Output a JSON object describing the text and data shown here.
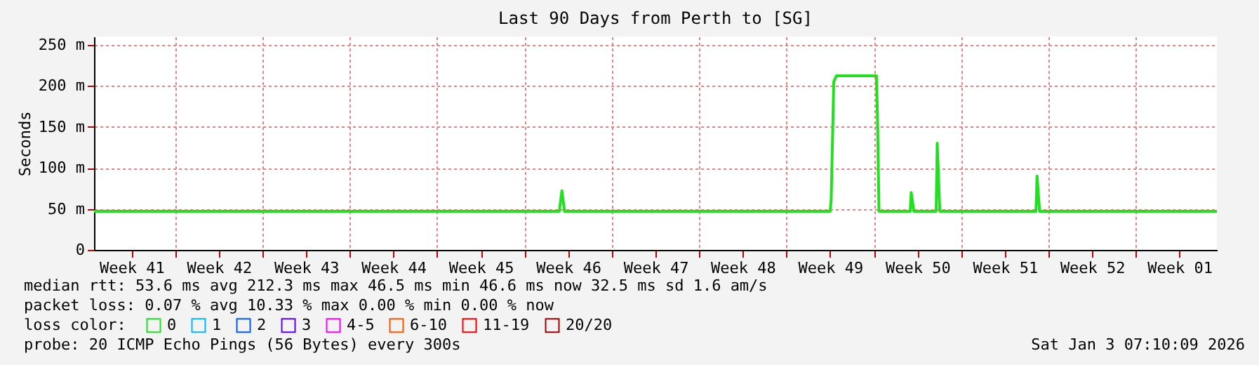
{
  "chart_data": {
    "type": "line",
    "title": "Last 90 Days from Perth to [SG]",
    "ylabel": "Seconds",
    "legend_title": "loss color:",
    "legend": "bottom",
    "grid": true,
    "marker": "none",
    "line_style": "solid",
    "x": [
      "2025-10-06T12:00",
      "2025-11-12T19:00",
      "2025-11-13T00:00",
      "2025-11-13T05:00",
      "2025-12-04T12:00",
      "2025-12-04T14:00",
      "2025-12-04T19:00",
      "2025-12-05T00:00",
      "2025-12-08T05:00",
      "2025-12-08T07:00",
      "2025-12-08T10:00",
      "2025-12-10T22:00",
      "2025-12-11T00:00",
      "2025-12-11T05:00",
      "2025-12-13T00:00",
      "2025-12-13T02:00",
      "2025-12-13T07:00",
      "2025-12-21T00:00",
      "2025-12-21T02:00",
      "2025-12-21T07:00",
      "2026-01-04T12:00"
    ],
    "xlim": [
      "2025-10-06T12:00",
      "2026-01-04T12:00"
    ],
    "xticks": [
      {
        "value": "2025-10-09T12:00",
        "label": "Week 41"
      },
      {
        "value": "2025-10-16T12:00",
        "label": "Week 42"
      },
      {
        "value": "2025-10-23T12:00",
        "label": "Week 43"
      },
      {
        "value": "2025-10-30T12:00",
        "label": "Week 44"
      },
      {
        "value": "2025-11-06T12:00",
        "label": "Week 45"
      },
      {
        "value": "2025-11-13T12:00",
        "label": "Week 46"
      },
      {
        "value": "2025-11-20T12:00",
        "label": "Week 47"
      },
      {
        "value": "2025-11-27T12:00",
        "label": "Week 48"
      },
      {
        "value": "2025-12-04T12:00",
        "label": "Week 49"
      },
      {
        "value": "2025-12-11T12:00",
        "label": "Week 50"
      },
      {
        "value": "2025-12-18T12:00",
        "label": "Week 51"
      },
      {
        "value": "2025-12-25T12:00",
        "label": "Week 52"
      },
      {
        "value": "2026-01-01T12:00",
        "label": "Week 01"
      },
      {
        "value": "2025-10-13",
        "label": null
      },
      {
        "value": "2025-10-20",
        "label": null
      },
      {
        "value": "2025-10-27",
        "label": null
      },
      {
        "value": "2025-11-03",
        "label": null
      },
      {
        "value": "2025-11-10",
        "label": null
      },
      {
        "value": "2025-11-17",
        "label": null
      },
      {
        "value": "2025-11-24",
        "label": null
      },
      {
        "value": "2025-12-01",
        "label": null
      },
      {
        "value": "2025-12-08",
        "label": null
      },
      {
        "value": "2025-12-15",
        "label": null
      },
      {
        "value": "2025-12-22",
        "label": null
      },
      {
        "value": "2025-12-29",
        "label": null
      }
    ],
    "ylim": [
      0,
      260
    ],
    "yticks": [
      0,
      {
        "value": 50,
        "label": "50 m"
      },
      {
        "value": 100,
        "label": "100 m"
      },
      {
        "value": 150,
        "label": "150 m"
      },
      {
        "value": 200,
        "label": "200 m"
      },
      {
        "value": 250,
        "label": "250 m"
      }
    ],
    "series": [
      {
        "name": "0",
        "color": "#20e020",
        "values": [
          47,
          47,
          72,
          47,
          47,
          61,
          205,
          212,
          212,
          165,
          47,
          47,
          70,
          47,
          47,
          130,
          47,
          47,
          90,
          47,
          47
        ]
      },
      {
        "name": "1",
        "color": "#00b8ff",
        "values": [
          null,
          null,
          null,
          null,
          null,
          null,
          null,
          null,
          null,
          null,
          null,
          null,
          null,
          null,
          null,
          null,
          null,
          null,
          null,
          null,
          null
        ]
      },
      {
        "name": "2",
        "color": "#0059ff",
        "values": [
          null,
          null,
          null,
          null,
          null,
          null,
          null,
          null,
          null,
          null,
          null,
          null,
          null,
          null,
          null,
          null,
          null,
          null,
          null,
          null,
          null
        ]
      },
      {
        "name": "3",
        "color": "#5e00ff",
        "values": [
          null,
          null,
          null,
          null,
          null,
          null,
          null,
          null,
          null,
          null,
          null,
          null,
          null,
          null,
          null,
          null,
          null,
          null,
          null,
          null,
          null
        ]
      },
      {
        "name": "4-5",
        "color": "#ff00ff",
        "values": [
          null,
          null,
          null,
          null,
          null,
          null,
          null,
          null,
          null,
          null,
          null,
          null,
          null,
          null,
          null,
          null,
          null,
          null,
          null,
          null,
          null
        ]
      },
      {
        "name": "6-10",
        "color": "#ff5500",
        "values": [
          null,
          null,
          null,
          null,
          null,
          null,
          null,
          null,
          null,
          null,
          null,
          null,
          null,
          null,
          null,
          null,
          null,
          null,
          null,
          null,
          null
        ]
      },
      {
        "name": "11-19",
        "color": "#ff0000",
        "values": [
          null,
          null,
          null,
          null,
          null,
          null,
          null,
          null,
          null,
          null,
          null,
          null,
          null,
          null,
          null,
          null,
          null,
          null,
          null,
          null,
          null
        ]
      },
      {
        "name": "20/20",
        "color": "#a10000",
        "values": [
          null,
          null,
          null,
          null,
          null,
          null,
          null,
          null,
          null,
          null,
          null,
          null,
          null,
          null,
          null,
          null,
          null,
          null,
          null,
          null,
          null
        ]
      }
    ],
    "annotations": [
      "median rtt:  53.6 ms avg  212.3 ms max  46.5 ms min  46.6 ms now  32.5 ms sd  1.6   am/s",
      "packet loss: 0.07 % avg  10.33 % max  0.00 % min  0.00 % now",
      "probe:       20 ICMP Echo Pings (56 Bytes) every 300s",
      "Sat Jan  3 07:10:09 2026"
    ]
  }
}
